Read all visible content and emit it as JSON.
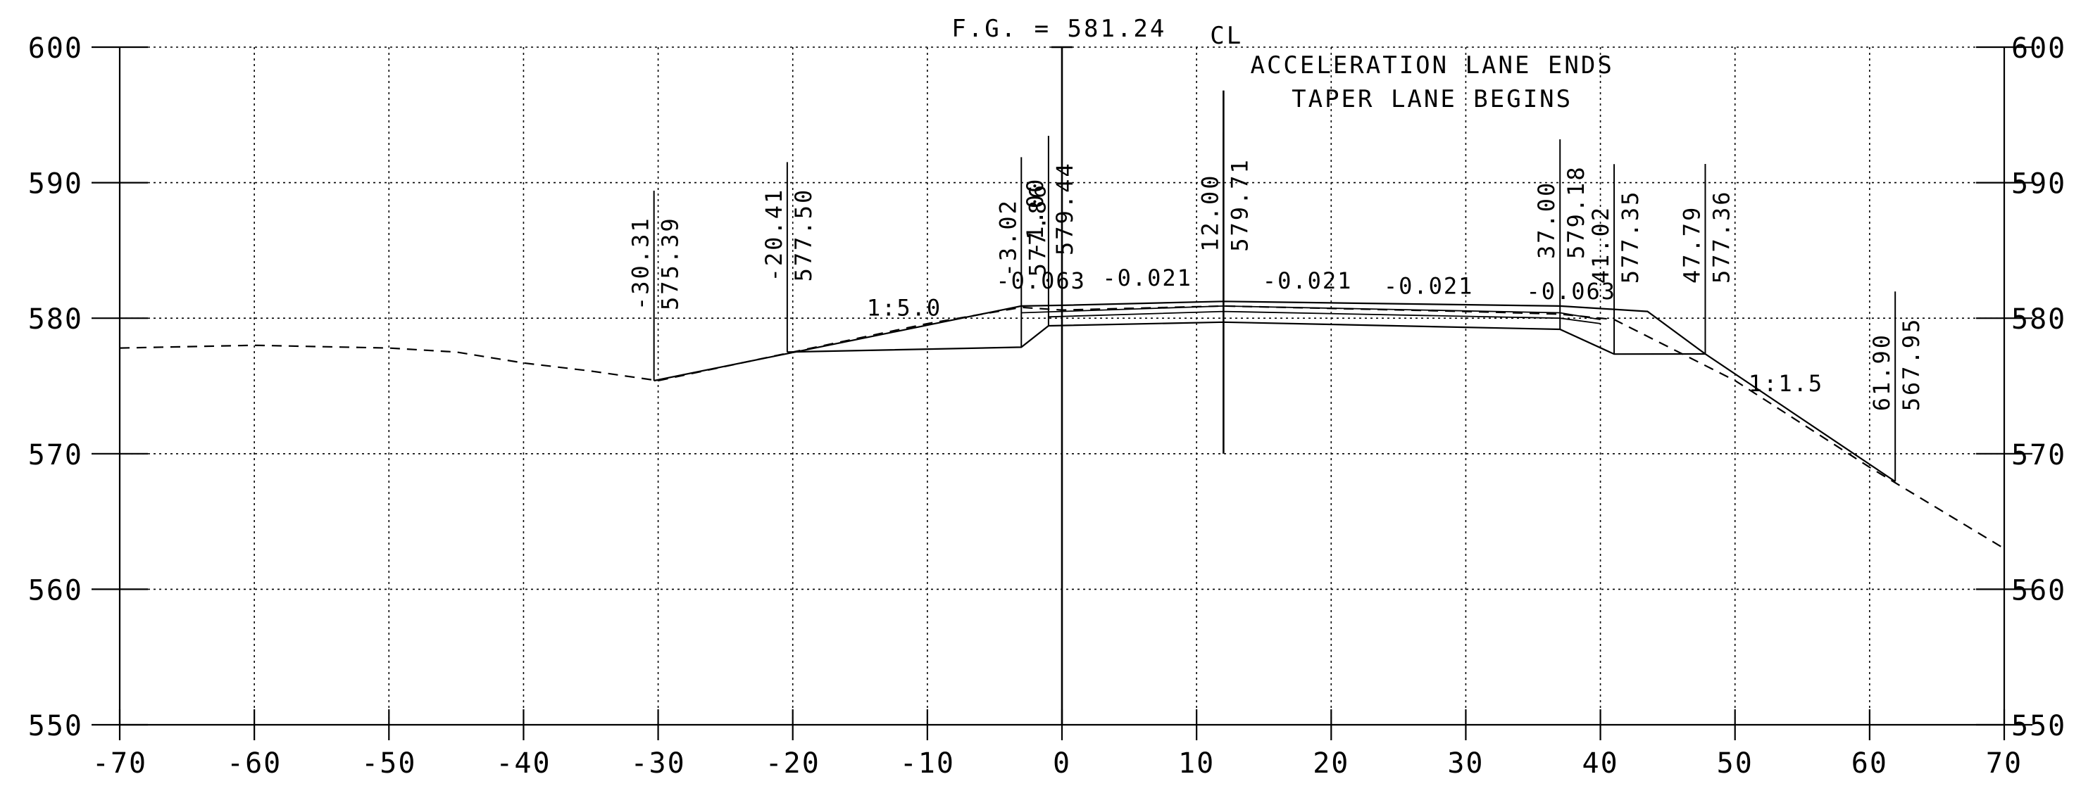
{
  "chart_data": {
    "type": "line",
    "title": "",
    "xlabel": "",
    "ylabel": "",
    "xlim": [
      -70,
      70
    ],
    "ylim": [
      550,
      600
    ],
    "x_ticks": [
      -70,
      -60,
      -50,
      -40,
      -30,
      -20,
      -10,
      0,
      10,
      20,
      30,
      40,
      50,
      60,
      70
    ],
    "x_tick_labels": [
      "-70",
      "-60",
      "-50",
      "-40",
      "-30",
      "-20",
      "-10",
      "0",
      "10",
      "20",
      "30",
      "40",
      "50",
      "60",
      "70"
    ],
    "y_ticks": [
      550,
      560,
      570,
      580,
      590,
      600
    ],
    "y_tick_labels": [
      "550",
      "560",
      "570",
      "580",
      "590",
      "600"
    ],
    "grid": true,
    "series": [
      {
        "style": "dashed",
        "points": [
          [
            -70,
            577.8
          ],
          [
            -60,
            578.0
          ],
          [
            -50,
            577.8
          ],
          [
            -45,
            577.5
          ],
          [
            -40,
            576.7
          ],
          [
            -35,
            576.1
          ],
          [
            -30,
            575.39
          ],
          [
            -20,
            577.5
          ],
          [
            -10,
            579.6
          ],
          [
            -3.02,
            580.8
          ],
          [
            0,
            580.6
          ],
          [
            12,
            580.9
          ],
          [
            30,
            580.5
          ],
          [
            37,
            580.3
          ],
          [
            41.02,
            579.9
          ],
          [
            50,
            575.4
          ],
          [
            60,
            569.0
          ],
          [
            70,
            563.0
          ]
        ]
      },
      {
        "style": "solid",
        "points": [
          [
            -30.31,
            575.39
          ],
          [
            -3.02,
            580.9
          ],
          [
            0,
            580.95
          ],
          [
            12,
            581.24
          ],
          [
            37,
            580.9
          ],
          [
            43.5,
            580.5
          ],
          [
            47.79,
            577.36
          ],
          [
            61.9,
            567.95
          ]
        ]
      },
      {
        "style": "solid",
        "points": [
          [
            -20.41,
            577.5
          ],
          [
            -3.02,
            577.86
          ],
          [
            -1,
            579.44
          ],
          [
            12,
            579.71
          ],
          [
            37,
            579.18
          ],
          [
            41.02,
            577.35
          ],
          [
            47.79,
            577.36
          ]
        ]
      },
      {
        "style": "solid",
        "points": [
          [
            -3.02,
            580.4
          ],
          [
            12,
            580.9
          ],
          [
            37,
            580.4
          ],
          [
            40,
            579.9
          ]
        ]
      },
      {
        "style": "solid",
        "points": [
          [
            -1,
            580.1
          ],
          [
            12,
            580.5
          ],
          [
            37,
            580.0
          ],
          [
            40,
            579.6
          ]
        ]
      }
    ],
    "offset_labels": [
      {
        "x": -30.31,
        "y": 575.39,
        "offset": "-30.31",
        "elev": "575.39"
      },
      {
        "x": -20.41,
        "y": 577.5,
        "offset": "-20.41",
        "elev": "577.50"
      },
      {
        "x": -3.02,
        "y": 577.86,
        "offset": "-3.02",
        "elev": "577.86"
      },
      {
        "x": -1.0,
        "y": 579.44,
        "offset": "-1.00",
        "elev": "579.44"
      },
      {
        "x": 12.0,
        "y": 579.71,
        "offset": "12.00",
        "elev": "579.71"
      },
      {
        "x": 37.0,
        "y": 579.18,
        "offset": "37.00",
        "elev": "579.18"
      },
      {
        "x": 41.02,
        "y": 577.35,
        "offset": "41.02",
        "elev": "577.35"
      },
      {
        "x": 47.79,
        "y": 577.36,
        "offset": "47.79",
        "elev": "577.36"
      },
      {
        "x": 61.9,
        "y": 567.95,
        "offset": "61.90",
        "elev": "567.95"
      }
    ],
    "slope_labels": [
      {
        "text": "1:5.0",
        "x": -14.5,
        "y": 580.2
      },
      {
        "text": "-0.063",
        "x": -4.9,
        "y": 582.2
      },
      {
        "text": "-0.021",
        "x": 3.0,
        "y": 582.4
      },
      {
        "text": "-0.021",
        "x": 14.9,
        "y": 582.2
      },
      {
        "text": "-0.021",
        "x": 23.9,
        "y": 581.8
      },
      {
        "text": "-0.063",
        "x": 34.5,
        "y": 581.4
      },
      {
        "text": "1:1.5",
        "x": 51.0,
        "y": 574.6
      }
    ],
    "annotations": {
      "fg": "F.G. = 581.24",
      "cl": "CL",
      "note_line1": "ACCELERATION LANE ENDS",
      "note_line2": "TAPER LANE BEGINS"
    }
  }
}
